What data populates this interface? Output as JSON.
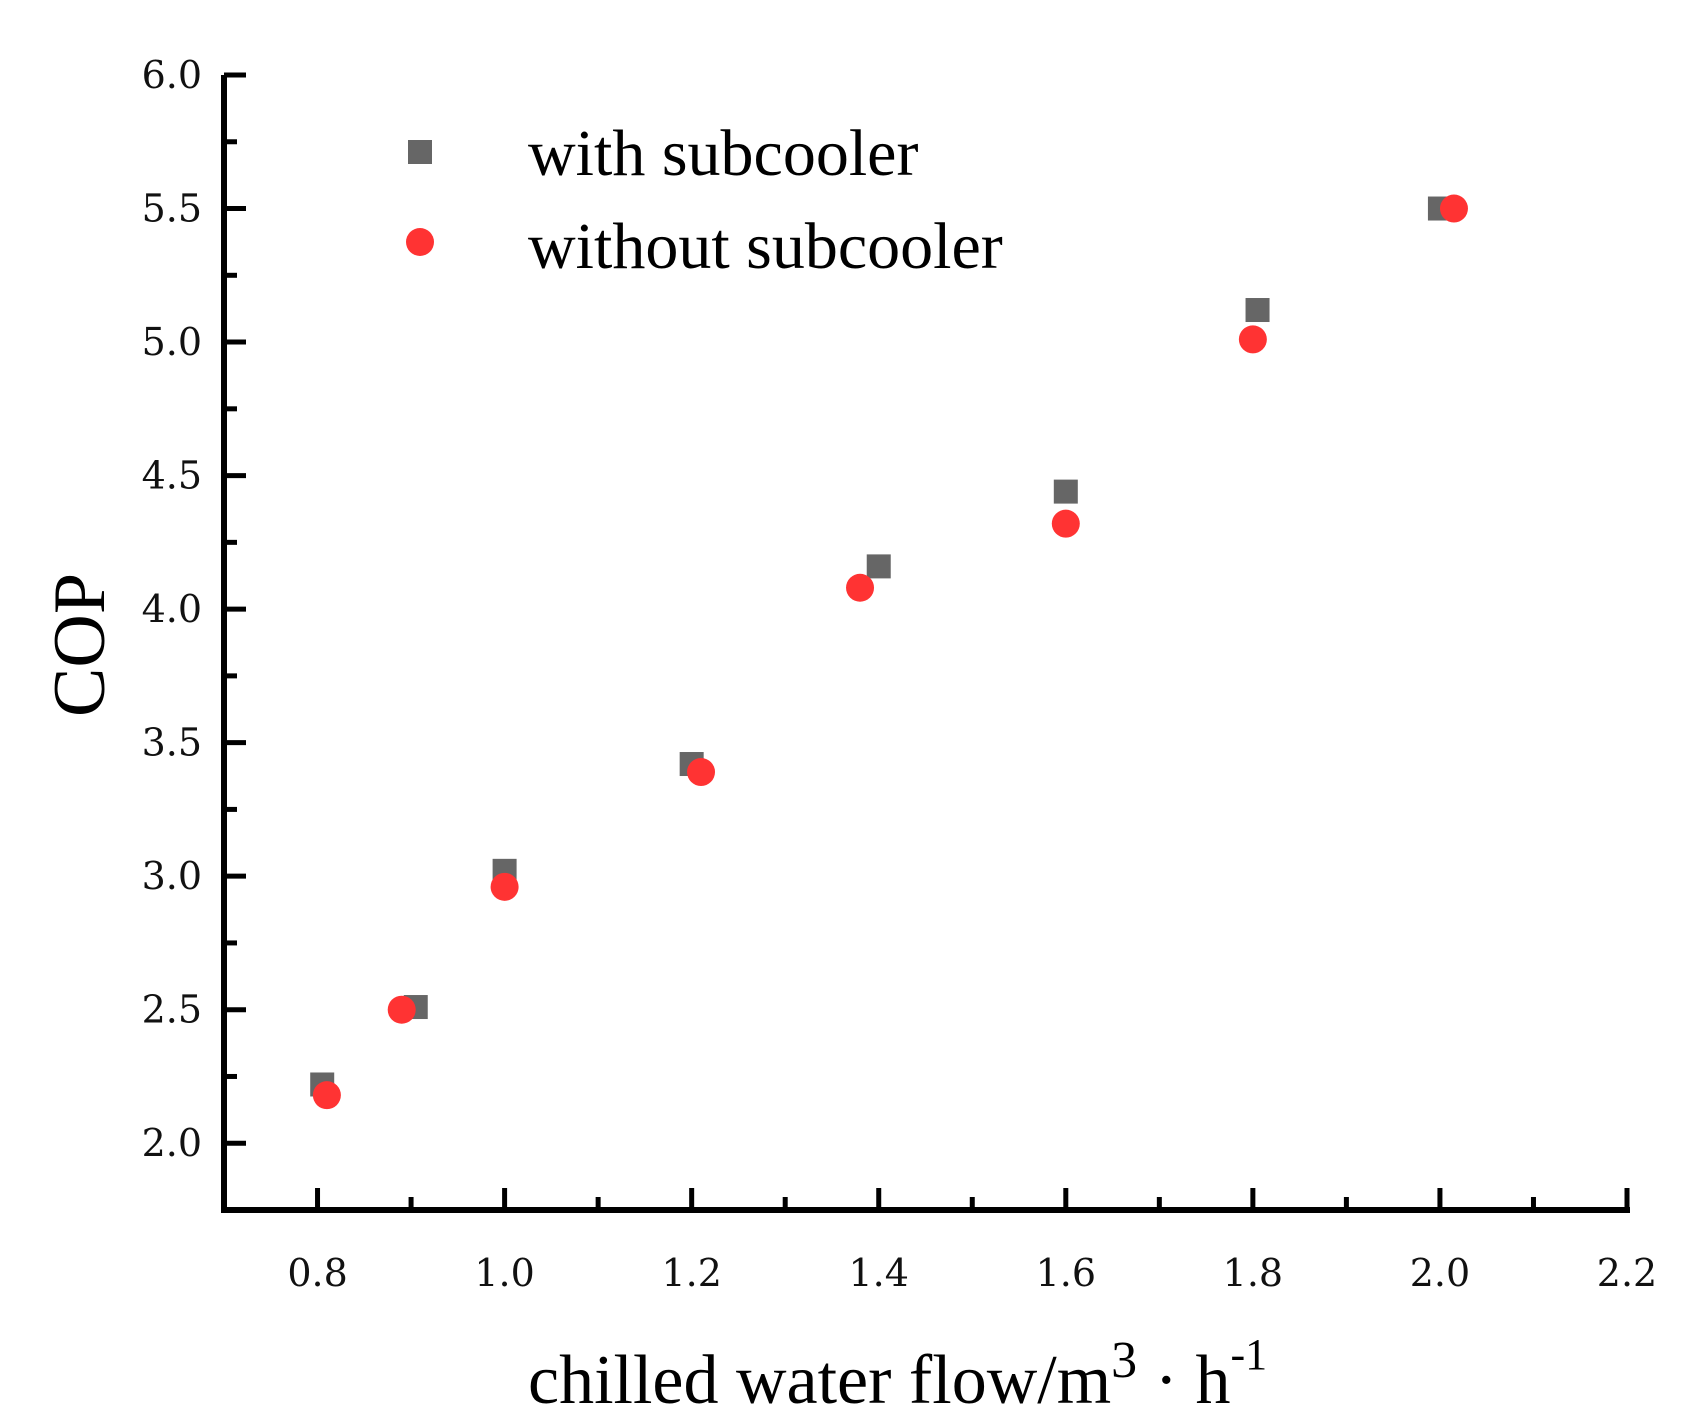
{
  "chart_data": {
    "type": "scatter",
    "title": "",
    "xlabel": "chilled water flow/m",
    "xlabel_sup1": "3",
    "xlabel_mid": " · h",
    "xlabel_sup2": "-1",
    "ylabel": "COP",
    "xlim": [
      0.7,
      2.2
    ],
    "ylim": [
      1.75,
      6.0
    ],
    "x_ticks": [
      0.8,
      1.0,
      1.2,
      1.4,
      1.6,
      1.8,
      2.0,
      2.2
    ],
    "x_tick_labels": [
      "0.8",
      "1.0",
      "1.2",
      "1.4",
      "1.6",
      "1.8",
      "2.0",
      "2.2"
    ],
    "y_ticks": [
      2.0,
      2.5,
      3.0,
      3.5,
      4.0,
      4.5,
      5.0,
      5.5,
      6.0
    ],
    "y_tick_labels": [
      "2.0",
      "2.5",
      "3.0",
      "3.5",
      "4.0",
      "4.5",
      "5.0",
      "5.5",
      "6.0"
    ],
    "legend_position": "top-left",
    "series": [
      {
        "name": "with subcooler",
        "marker": "square",
        "color": "#666666",
        "x": [
          0.805,
          0.905,
          1.0,
          1.2,
          1.4,
          1.6,
          1.805,
          2.0
        ],
        "y": [
          2.22,
          2.51,
          3.02,
          3.42,
          4.16,
          4.44,
          5.12,
          5.5
        ]
      },
      {
        "name": "without subcooler",
        "marker": "circle",
        "color": "#ff3333",
        "x": [
          0.81,
          0.89,
          1.0,
          1.21,
          1.38,
          1.6,
          1.8,
          2.015
        ],
        "y": [
          2.18,
          2.5,
          2.96,
          3.39,
          4.08,
          4.32,
          5.01,
          5.5
        ]
      }
    ]
  }
}
